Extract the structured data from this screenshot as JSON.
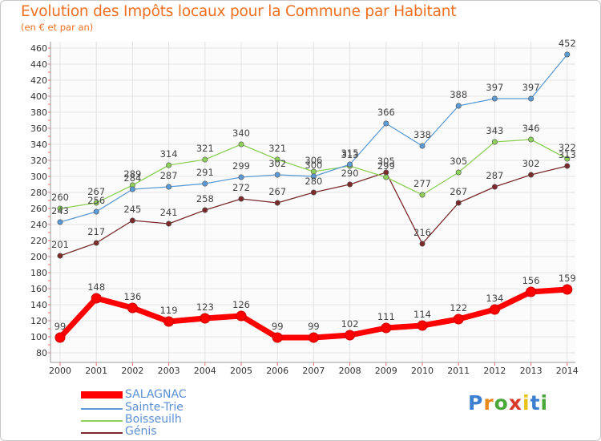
{
  "header": {
    "title": "Evolution des Impôts locaux pour la Commune par Habitant",
    "subtitle": "(en € et par an)"
  },
  "logo": {
    "letters": [
      "P",
      "r",
      "o",
      "x",
      "i",
      "t",
      "i"
    ],
    "text": "Proxiti"
  },
  "chart_data": {
    "type": "line",
    "title": "Evolution des Impôts locaux pour la Commune par Habitant",
    "subtitle": "(en € et par an)",
    "xlabel": "",
    "ylabel": "",
    "categories": [
      "2000",
      "2001",
      "2002",
      "2003",
      "2004",
      "2005",
      "2006",
      "2007",
      "2008",
      "2009",
      "2010",
      "2011",
      "2012",
      "2013",
      "2014"
    ],
    "yticks": [
      80,
      100,
      120,
      140,
      160,
      180,
      200,
      220,
      240,
      260,
      280,
      300,
      320,
      340,
      360,
      380,
      400,
      420,
      440,
      460
    ],
    "ylim": [
      80,
      465
    ],
    "grid": true,
    "legend_position": "bottom-left",
    "series": [
      {
        "name": "SALAGNAC",
        "color": "#ff0000",
        "values": [
          99,
          148,
          136,
          119,
          123,
          126,
          99,
          99,
          102,
          111,
          114,
          122,
          134,
          156,
          159
        ]
      },
      {
        "name": "Sainte-Trie",
        "color": "#5b9bd5",
        "values": [
          243,
          256,
          284,
          287,
          291,
          299,
          302,
          300,
          315,
          366,
          338,
          388,
          397,
          397,
          452
        ]
      },
      {
        "name": "Boisseuilh",
        "color": "#8ed05a",
        "values": [
          260,
          267,
          289,
          314,
          321,
          340,
          321,
          306,
          313,
          299,
          277,
          305,
          343,
          346,
          322
        ]
      },
      {
        "name": "Génis",
        "color": "#7a2a2a",
        "values": [
          201,
          217,
          245,
          241,
          258,
          272,
          267,
          280,
          290,
          305,
          216,
          267,
          287,
          302,
          313
        ]
      }
    ]
  }
}
